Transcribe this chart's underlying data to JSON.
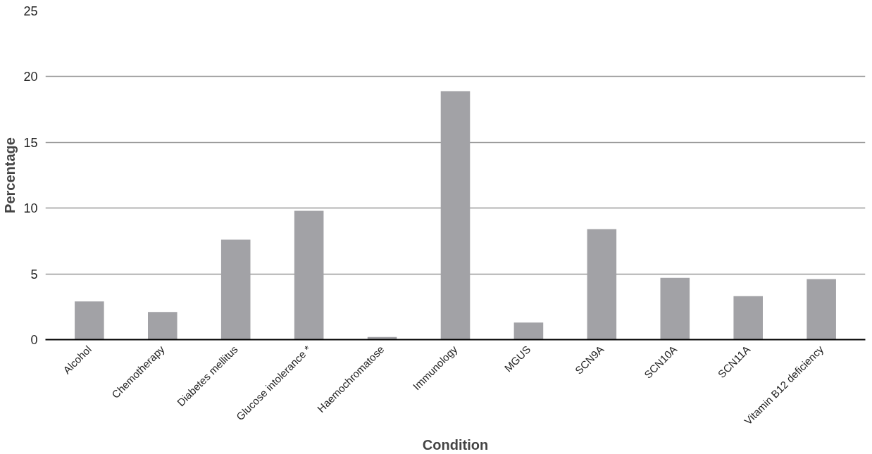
{
  "chart_data": {
    "type": "bar",
    "xlabel": "Condition",
    "ylabel": "Percentage",
    "categories": [
      "Alcohol",
      "Chemotherapy",
      "Diabetes mellitus",
      "Glucose intolerance *",
      "Haemochromatose",
      "Immunology",
      "MGUS",
      "SCN9A",
      "SCN10A",
      "SCN11A",
      "Vitamin B12 deficiency"
    ],
    "values": [
      2.9,
      2.1,
      7.6,
      9.8,
      0.2,
      18.9,
      1.3,
      8.4,
      4.7,
      3.3,
      4.6
    ],
    "color": "#a2a2a6",
    "ylim": [
      0,
      25
    ],
    "yticks": [
      0,
      5,
      10,
      15,
      20,
      25
    ],
    "grid": "y"
  }
}
